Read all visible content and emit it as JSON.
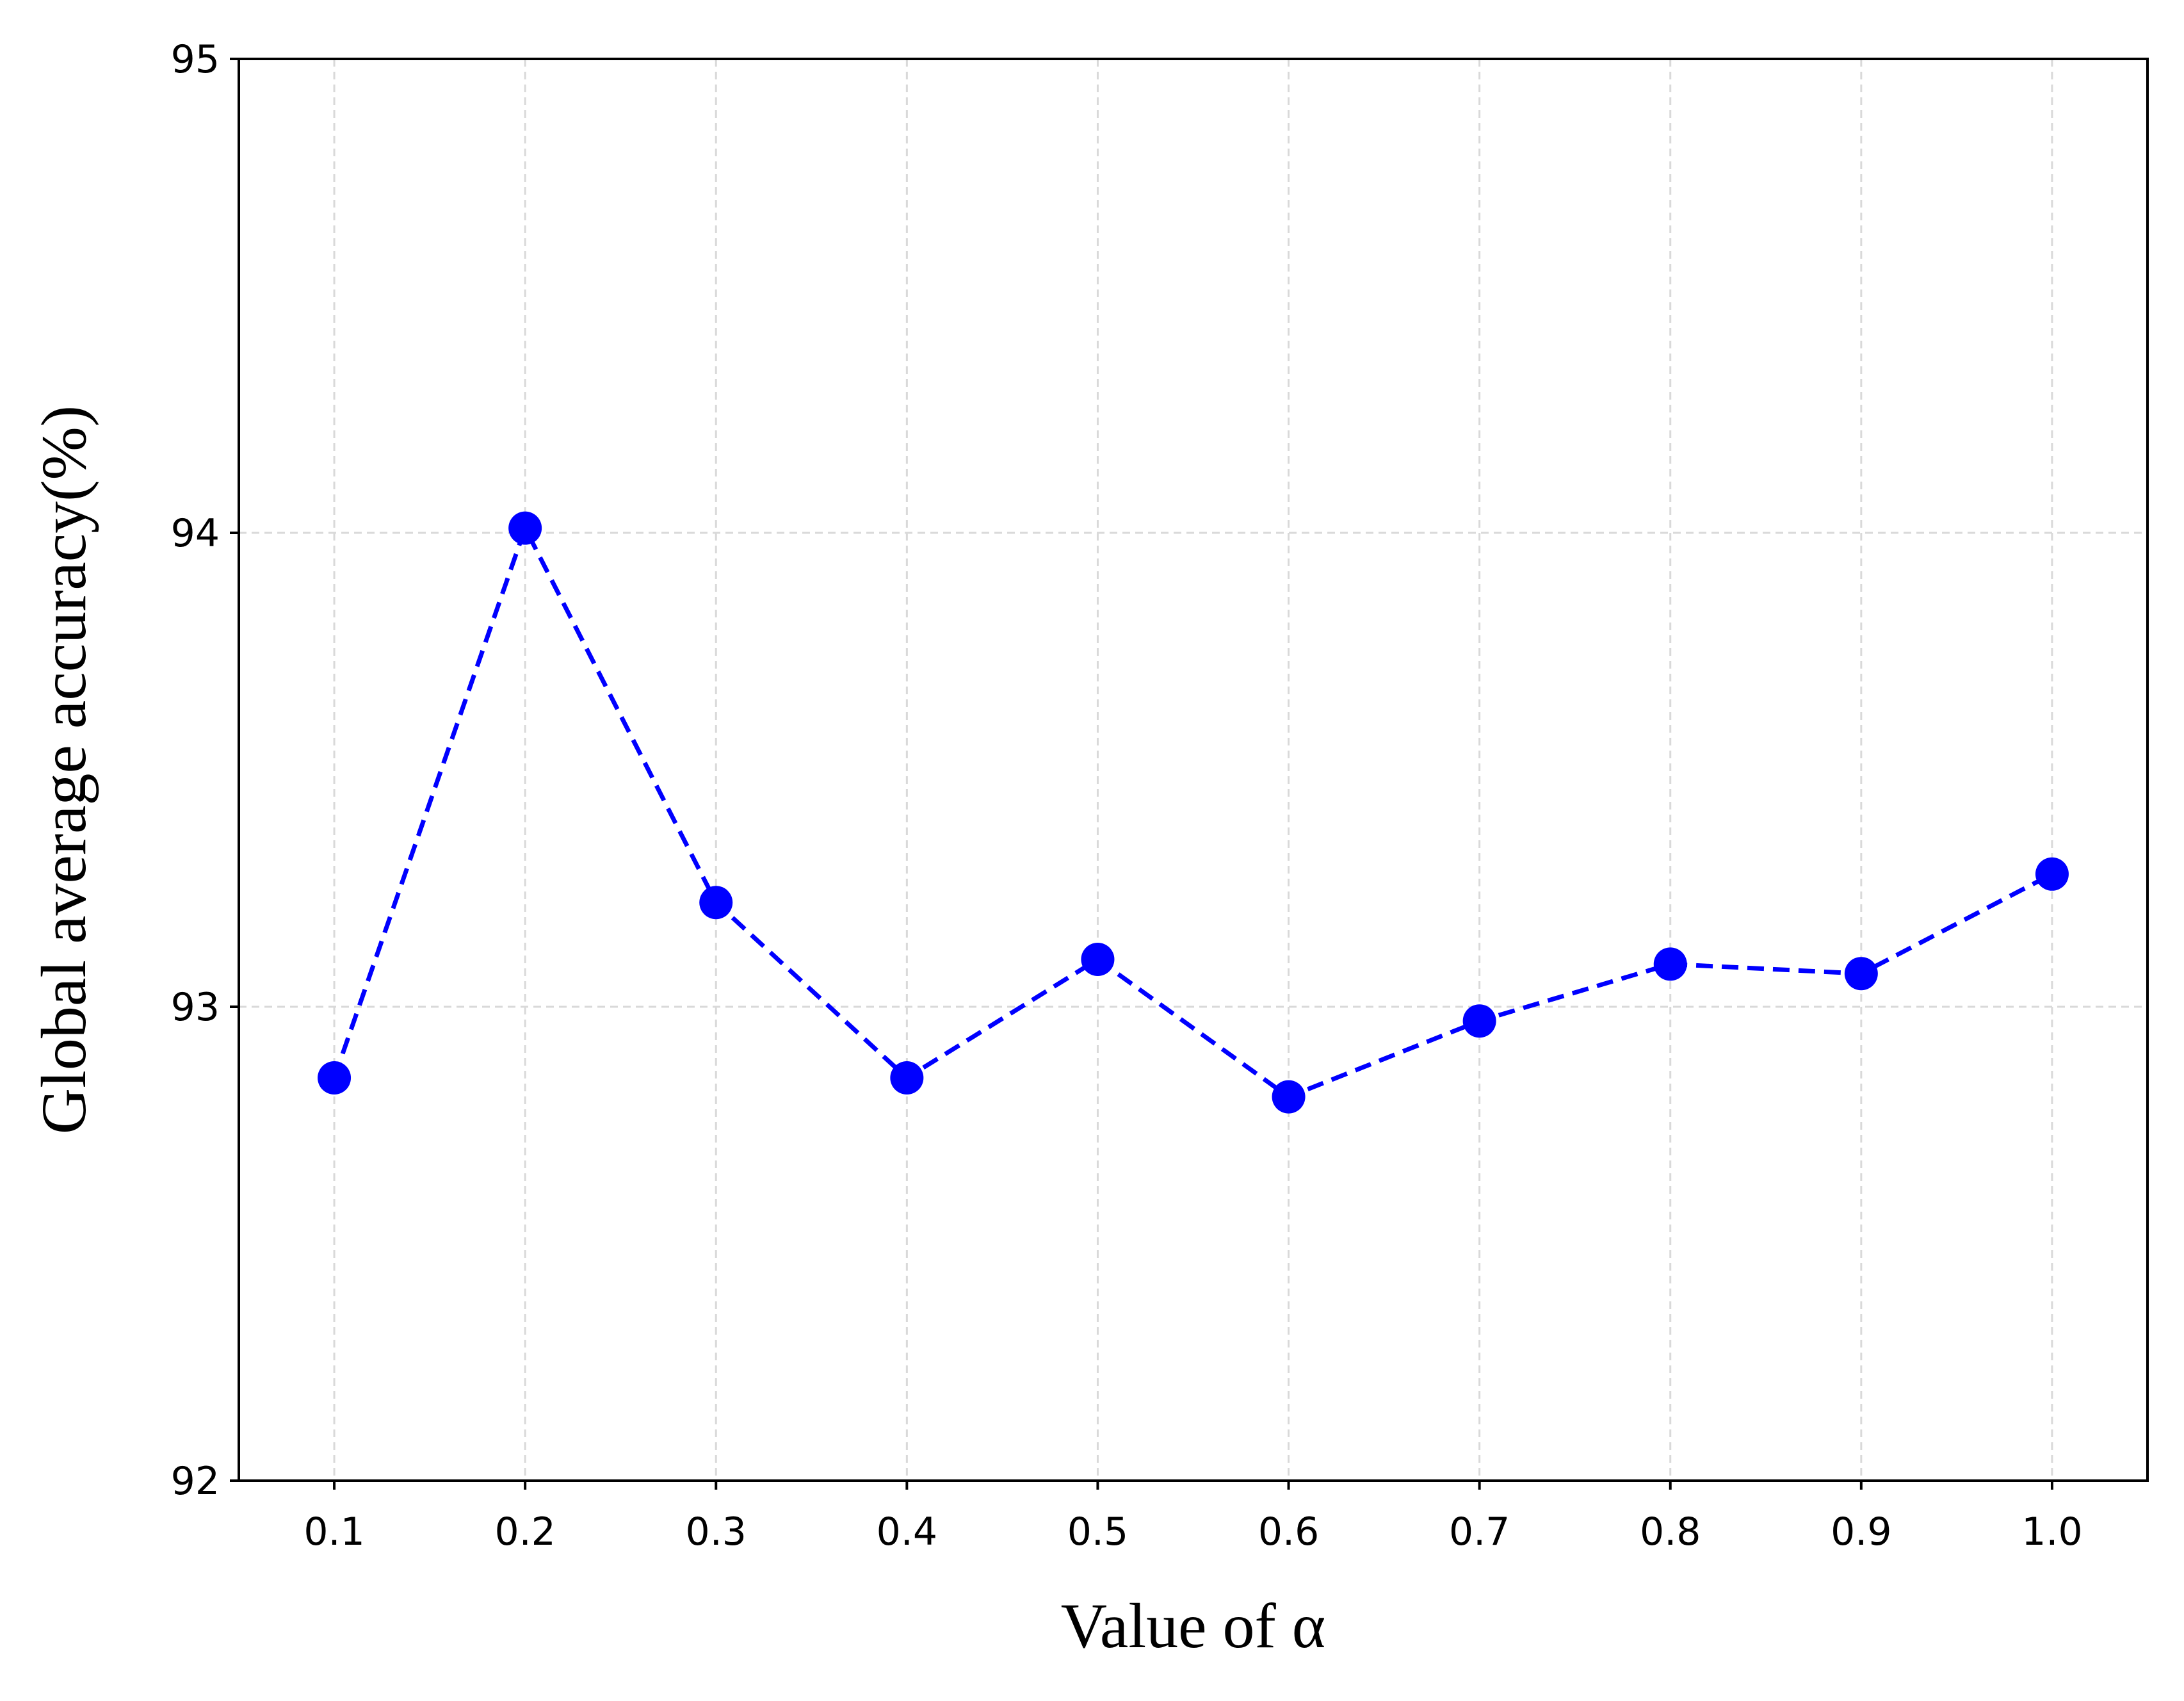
{
  "chart_data": {
    "type": "line",
    "title": "",
    "xlabel": "Value of α",
    "ylabel": "Global average accuracy(%)",
    "x": [
      0.1,
      0.2,
      0.3,
      0.4,
      0.5,
      0.6,
      0.7,
      0.8,
      0.9,
      1.0
    ],
    "x_tick_labels": [
      "0.1",
      "0.2",
      "0.3",
      "0.4",
      "0.5",
      "0.6",
      "0.7",
      "0.8",
      "0.9",
      "1.0"
    ],
    "y_ticks": [
      92,
      93,
      94,
      95
    ],
    "y_tick_labels": [
      "92",
      "93",
      "94",
      "95"
    ],
    "xlim": [
      0.05,
      1.05
    ],
    "ylim": [
      92,
      95
    ],
    "grid": true,
    "grid_style": "dashed",
    "series": [
      {
        "values": [
          92.85,
          94.01,
          93.22,
          92.85,
          93.1,
          92.81,
          92.97,
          93.09,
          93.07,
          93.28
        ],
        "color": "#0000ff",
        "line_style": "dashed",
        "marker": "circle"
      }
    ]
  }
}
